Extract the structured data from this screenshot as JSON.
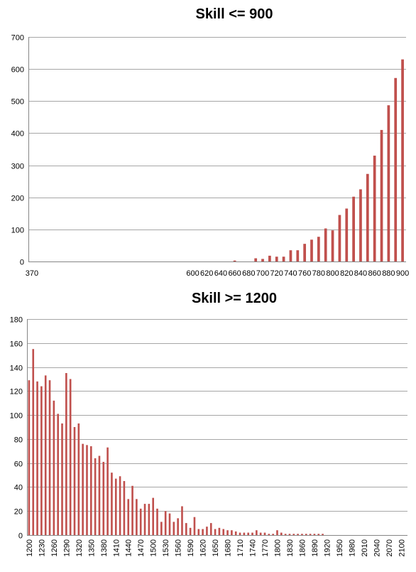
{
  "chart_data": [
    {
      "type": "bar",
      "title": "Skill <= 900",
      "xlabel": "",
      "ylabel": "",
      "ylim": [
        0,
        700
      ],
      "yticks": [
        0,
        100,
        200,
        300,
        400,
        500,
        600,
        700
      ],
      "grid": true,
      "bar_color": "#c0504d",
      "categories": [
        "370",
        "380",
        "390",
        "400",
        "410",
        "420",
        "430",
        "440",
        "450",
        "460",
        "470",
        "480",
        "490",
        "500",
        "510",
        "520",
        "530",
        "540",
        "550",
        "560",
        "570",
        "580",
        "590",
        "600",
        "610",
        "620",
        "630",
        "640",
        "650",
        "660",
        "670",
        "680",
        "690",
        "700",
        "710",
        "720",
        "730",
        "740",
        "750",
        "760",
        "770",
        "780",
        "790",
        "800",
        "810",
        "820",
        "830",
        "840",
        "850",
        "860",
        "870",
        "880",
        "890",
        "900"
      ],
      "x_labels_shown": [
        "370",
        "600",
        "620",
        "640",
        "660",
        "680",
        "700",
        "720",
        "740",
        "760",
        "780",
        "800",
        "820",
        "840",
        "860",
        "880",
        "900"
      ],
      "values": [
        0,
        0,
        0,
        0,
        0,
        0,
        0,
        0,
        0,
        0,
        0,
        0,
        0,
        0,
        0,
        0,
        0,
        0,
        0,
        0,
        0,
        0,
        0,
        0,
        0,
        0,
        0,
        0,
        0,
        3,
        0,
        0,
        10,
        8,
        18,
        15,
        15,
        35,
        35,
        55,
        68,
        77,
        103,
        97,
        145,
        165,
        202,
        225,
        273,
        330,
        410,
        487,
        572,
        630
      ]
    },
    {
      "type": "bar",
      "title": "Skill >= 1200",
      "xlabel": "",
      "ylabel": "",
      "ylim": [
        0,
        180
      ],
      "yticks": [
        0,
        20,
        40,
        60,
        80,
        100,
        120,
        140,
        160,
        180
      ],
      "grid": true,
      "bar_color": "#c0504d",
      "categories": [
        "1200",
        "1210",
        "1220",
        "1230",
        "1240",
        "1250",
        "1260",
        "1270",
        "1280",
        "1290",
        "1300",
        "1310",
        "1320",
        "1330",
        "1340",
        "1350",
        "1360",
        "1370",
        "1380",
        "1390",
        "1400",
        "1410",
        "1420",
        "1430",
        "1440",
        "1450",
        "1460",
        "1470",
        "1480",
        "1490",
        "1500",
        "1510",
        "1520",
        "1530",
        "1540",
        "1550",
        "1560",
        "1570",
        "1580",
        "1590",
        "1600",
        "1610",
        "1620",
        "1630",
        "1640",
        "1650",
        "1660",
        "1670",
        "1680",
        "1690",
        "1700",
        "1710",
        "1720",
        "1730",
        "1740",
        "1750",
        "1760",
        "1770",
        "1780",
        "1790",
        "1800",
        "1810",
        "1820",
        "1830",
        "1840",
        "1850",
        "1860",
        "1870",
        "1880",
        "1890",
        "1900",
        "1910",
        "1920",
        "1930",
        "1940",
        "1950",
        "1960",
        "1970",
        "1980",
        "1990",
        "2000",
        "2010",
        "2020",
        "2030",
        "2040",
        "2050",
        "2060",
        "2070",
        "2080",
        "2090",
        "2100",
        "2110"
      ],
      "x_labels_shown": [
        "1200",
        "1230",
        "1260",
        "1290",
        "1320",
        "1350",
        "1380",
        "1410",
        "1440",
        "1470",
        "1500",
        "1530",
        "1560",
        "1590",
        "1620",
        "1650",
        "1680",
        "1710",
        "1740",
        "1770",
        "1800",
        "1830",
        "1860",
        "1890",
        "1920",
        "1950",
        "1980",
        "2010",
        "2040",
        "2070",
        "2100"
      ],
      "values": [
        129,
        155,
        128,
        124,
        133,
        129,
        112,
        101,
        93,
        135,
        130,
        90,
        93,
        76,
        75,
        74,
        64,
        66,
        61,
        73,
        52,
        47,
        49,
        45,
        30,
        41,
        30,
        22,
        26,
        26,
        31,
        22,
        11,
        20,
        18,
        11,
        14,
        24,
        10,
        6,
        15,
        5,
        5,
        7,
        10,
        5,
        6,
        5,
        4,
        4,
        3,
        2,
        2,
        2,
        2,
        4,
        2,
        2,
        1,
        1,
        4,
        2,
        1,
        1,
        1,
        1,
        1,
        1,
        1,
        1,
        1,
        1,
        0,
        0,
        0,
        0,
        0,
        0,
        0,
        0,
        0,
        0,
        0,
        0,
        0,
        0,
        0,
        0,
        0,
        0,
        0,
        0
      ]
    }
  ]
}
